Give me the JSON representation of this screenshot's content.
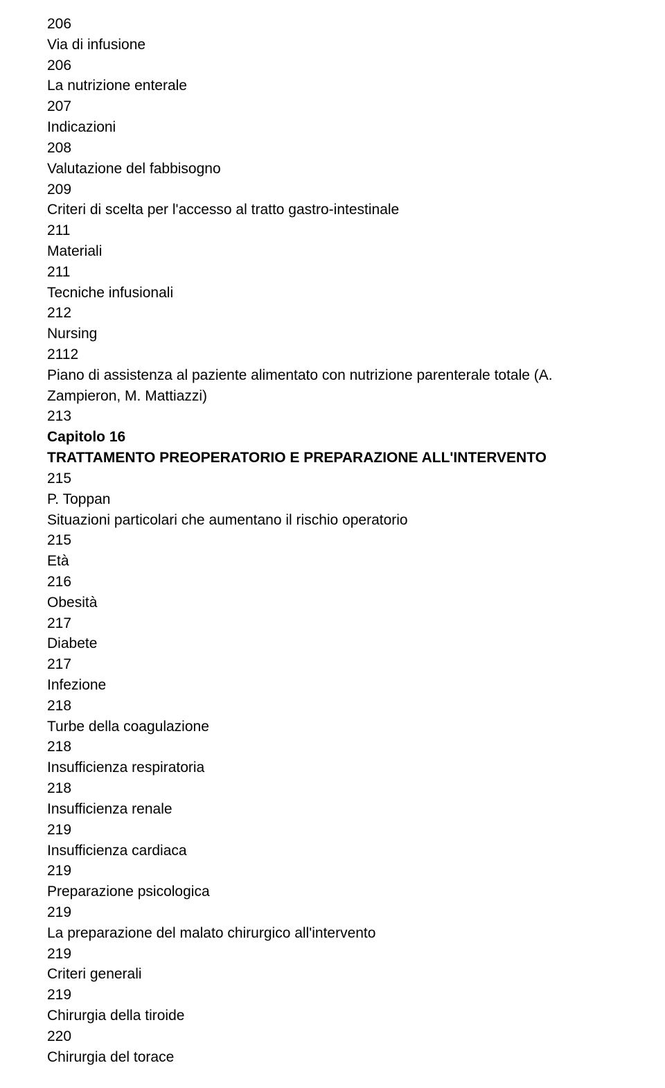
{
  "typography": {
    "font_family": "Arial, Helvetica, sans-serif",
    "font_size_pt": 16,
    "line_height": 1.42,
    "text_color": "#000000",
    "background_color": "#ffffff"
  },
  "lines": [
    {
      "text": "206",
      "bold": false
    },
    {
      "text": "Via di infusione",
      "bold": false
    },
    {
      "text": "206",
      "bold": false
    },
    {
      "text": "La nutrizione enterale",
      "bold": false
    },
    {
      "text": "207",
      "bold": false
    },
    {
      "text": "Indicazioni",
      "bold": false
    },
    {
      "text": "208",
      "bold": false
    },
    {
      "text": "Valutazione del fabbisogno",
      "bold": false
    },
    {
      "text": "209",
      "bold": false
    },
    {
      "text": "Criteri di scelta per l'accesso al tratto gastro-intestinale",
      "bold": false
    },
    {
      "text": "211",
      "bold": false
    },
    {
      "text": "Materiali",
      "bold": false
    },
    {
      "text": "211",
      "bold": false
    },
    {
      "text": "Tecniche infusionali",
      "bold": false
    },
    {
      "text": "212",
      "bold": false
    },
    {
      "text": "Nursing",
      "bold": false
    },
    {
      "text": "2112",
      "bold": false
    },
    {
      "text": "Piano di assistenza al paziente alimentato con nutrizione parenterale totale (A. Zampieron, M. Mattiazzi)",
      "bold": false
    },
    {
      "text": "213",
      "bold": false
    },
    {
      "text": "Capitolo 16",
      "bold": true
    },
    {
      "text": "TRATTAMENTO PREOPERATORIO E PREPARAZIONE ALL'INTERVENTO",
      "bold": true
    },
    {
      "text": "215",
      "bold": false
    },
    {
      "text": "P. Toppan",
      "bold": false
    },
    {
      "text": "Situazioni particolari che aumentano il rischio operatorio",
      "bold": false
    },
    {
      "text": "215",
      "bold": false
    },
    {
      "text": "Età",
      "bold": false
    },
    {
      "text": "216",
      "bold": false
    },
    {
      "text": "Obesità",
      "bold": false
    },
    {
      "text": "217",
      "bold": false
    },
    {
      "text": "Diabete",
      "bold": false
    },
    {
      "text": "217",
      "bold": false
    },
    {
      "text": "Infezione",
      "bold": false
    },
    {
      "text": "218",
      "bold": false
    },
    {
      "text": "Turbe della coagulazione",
      "bold": false
    },
    {
      "text": "218",
      "bold": false
    },
    {
      "text": "Insufficienza respiratoria",
      "bold": false
    },
    {
      "text": "218",
      "bold": false
    },
    {
      "text": "Insufficienza renale",
      "bold": false
    },
    {
      "text": "219",
      "bold": false
    },
    {
      "text": "Insufficienza cardiaca",
      "bold": false
    },
    {
      "text": "219",
      "bold": false
    },
    {
      "text": "Preparazione psicologica",
      "bold": false
    },
    {
      "text": "219",
      "bold": false
    },
    {
      "text": "La preparazione del malato chirurgico all'intervento",
      "bold": false
    },
    {
      "text": "219",
      "bold": false
    },
    {
      "text": "Criteri generali",
      "bold": false
    },
    {
      "text": "219",
      "bold": false
    },
    {
      "text": "Chirurgia della tiroide",
      "bold": false
    },
    {
      "text": "220",
      "bold": false
    },
    {
      "text": "Chirurgia del torace",
      "bold": false
    }
  ]
}
